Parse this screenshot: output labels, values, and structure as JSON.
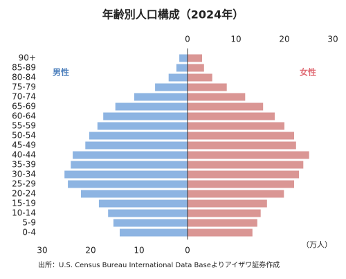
{
  "chart_data": {
    "type": "pyramid",
    "title": "年齢別人口構成（2024年）",
    "categories": [
      "90+",
      "85-89",
      "80-84",
      "75-79",
      "70-74",
      "65-69",
      "60-64",
      "55-59",
      "50-54",
      "45-49",
      "40-44",
      "35-39",
      "30-34",
      "25-29",
      "20-24",
      "15-19",
      "10-14",
      "5-9",
      "0-4"
    ],
    "series": [
      {
        "name": "男性",
        "color": "#8db4e2",
        "label_color": "#4f81bd",
        "side": "left",
        "values": [
          1.7,
          2.3,
          3.9,
          6.7,
          11,
          14.9,
          17.4,
          18.6,
          20.3,
          21.1,
          23.7,
          24.1,
          25.4,
          24.7,
          22,
          18.3,
          16.4,
          15.3,
          14
        ]
      },
      {
        "name": "女性",
        "color": "#da9694",
        "label_color": "#e06c75",
        "side": "right",
        "values": [
          3,
          3.4,
          5.1,
          8.1,
          11.9,
          15.6,
          18,
          20,
          22,
          22.4,
          25.1,
          23.9,
          23,
          22,
          19.9,
          16.4,
          15.1,
          14.4,
          13.4
        ]
      }
    ],
    "xlim": [
      0,
      30
    ],
    "xticks": [
      0,
      10,
      20,
      30
    ],
    "unit": "（万人）",
    "source": "出所：U.S. Census Bureau International Data Baseよりアイザワ証券作成"
  }
}
